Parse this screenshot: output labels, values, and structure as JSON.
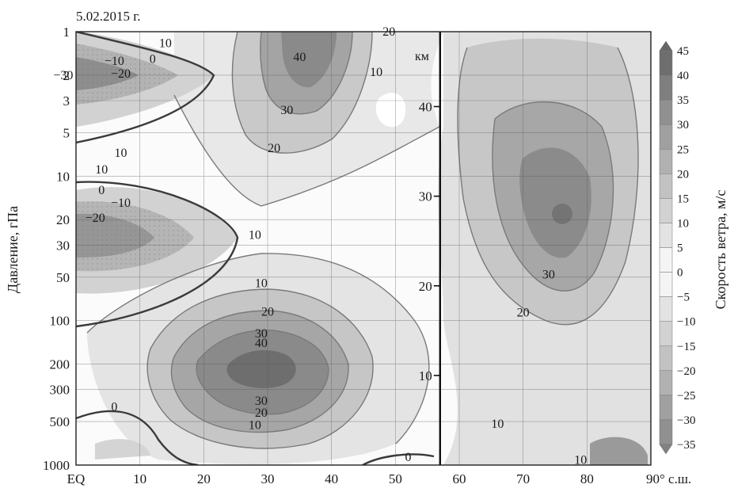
{
  "chart_data": {
    "type": "heatmap",
    "title": "5.02.2015 г.",
    "ylabel": "Давление, гПа",
    "colorbar_label": "Скорость ветра, м/с",
    "height_axis_label": "км",
    "x_ticks": [
      "EQ",
      "10",
      "20",
      "30",
      "40",
      "50",
      "60",
      "70",
      "80",
      "90° с.ш."
    ],
    "x_values": [
      0,
      10,
      20,
      30,
      40,
      50,
      60,
      70,
      80,
      90
    ],
    "xlim": [
      0,
      90
    ],
    "y_ticks": [
      "1",
      "2",
      "3",
      "5",
      "10",
      "20",
      "30",
      "50",
      "100",
      "200",
      "300",
      "500",
      "1000"
    ],
    "y_values": [
      1,
      2,
      3,
      5,
      10,
      20,
      30,
      50,
      100,
      200,
      300,
      500,
      1000
    ],
    "ylim": [
      1,
      1000
    ],
    "y_scale": "log",
    "height_ticks": [
      "40",
      "30",
      "20",
      "10"
    ],
    "height_values_km": [
      40,
      30,
      20,
      10
    ],
    "vertical_line_lat": 57,
    "colorbar_ticks": [
      "45",
      "40",
      "35",
      "30",
      "25",
      "20",
      "15",
      "10",
      "5",
      "0",
      "−5",
      "−10",
      "−15",
      "−20",
      "−25",
      "−30",
      "−35"
    ],
    "colorbar_range": [
      -35,
      45
    ],
    "grid": true,
    "legend_position": "right",
    "contour_labels": [
      {
        "text": "10",
        "lat": 14,
        "p": 1.2
      },
      {
        "text": "−10",
        "lat": 6,
        "p": 1.6
      },
      {
        "text": "0",
        "lat": 12,
        "p": 1.55
      },
      {
        "text": "−30",
        "lat": -2,
        "p": 2.0
      },
      {
        "text": "−20",
        "lat": 7,
        "p": 1.95
      },
      {
        "text": "40",
        "lat": 35,
        "p": 1.5
      },
      {
        "text": "20",
        "lat": 49,
        "p": 1.0
      },
      {
        "text": "10",
        "lat": 47,
        "p": 1.9
      },
      {
        "text": "30",
        "lat": 33,
        "p": 3.5
      },
      {
        "text": "20",
        "lat": 31,
        "p": 6.4
      },
      {
        "text": "10",
        "lat": 7,
        "p": 6.9
      },
      {
        "text": "10",
        "lat": 4,
        "p": 9.0
      },
      {
        "text": "0",
        "lat": 4,
        "p": 12.5
      },
      {
        "text": "−10",
        "lat": 7,
        "p": 15.3
      },
      {
        "text": "−20",
        "lat": 3,
        "p": 19.5
      },
      {
        "text": "10",
        "lat": 28,
        "p": 25.5
      },
      {
        "text": "30",
        "lat": 29,
        "p": 123
      },
      {
        "text": "40",
        "lat": 29,
        "p": 143
      },
      {
        "text": "20",
        "lat": 30,
        "p": 87
      },
      {
        "text": "10",
        "lat": 29,
        "p": 55
      },
      {
        "text": "30",
        "lat": 29,
        "p": 360
      },
      {
        "text": "20",
        "lat": 29,
        "p": 435
      },
      {
        "text": "10",
        "lat": 28,
        "p": 530
      },
      {
        "text": "0",
        "lat": 6,
        "p": 395
      },
      {
        "text": "0",
        "lat": 52,
        "p": 880
      },
      {
        "text": "30",
        "lat": 74,
        "p": 48
      },
      {
        "text": "20",
        "lat": 70,
        "p": 88
      },
      {
        "text": "10",
        "lat": 66,
        "p": 520
      },
      {
        "text": "10",
        "lat": 79,
        "p": 920
      }
    ]
  }
}
